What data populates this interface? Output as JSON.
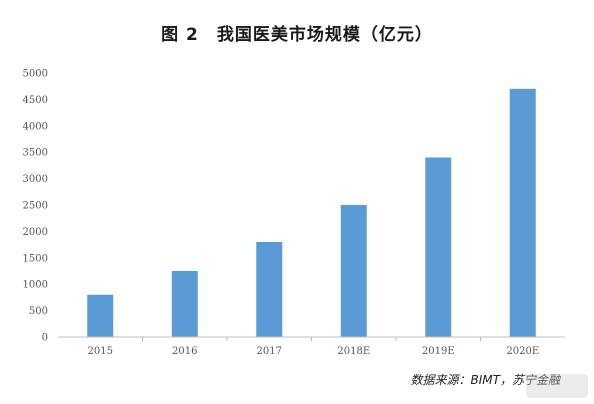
{
  "chart_data": {
    "type": "bar",
    "title": "图 2　我国医美市场规模（亿元）",
    "categories": [
      "2015",
      "2016",
      "2017",
      "2018E",
      "2019E",
      "2020E"
    ],
    "values": [
      800,
      1250,
      1800,
      2500,
      3400,
      4700
    ],
    "yticks": [
      "0",
      "500",
      "1000",
      "1500",
      "2000",
      "2500",
      "3000",
      "3500",
      "4000",
      "4500",
      "5000"
    ],
    "ylim": [
      0,
      5000
    ],
    "xlabel": "",
    "ylabel": "",
    "grid": false,
    "bar_color": "#5b9bd5",
    "source": "数据来源：BIMT，苏宁金融"
  }
}
